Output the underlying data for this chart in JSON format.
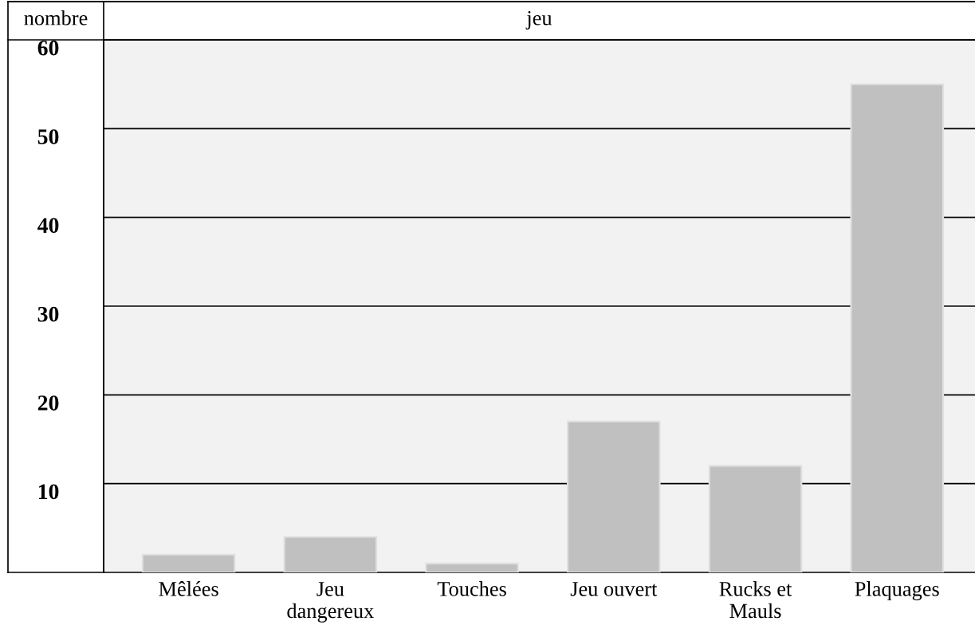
{
  "chart_data": {
    "type": "bar",
    "title": "jeu",
    "ylabel": "nombre",
    "categories": [
      "Mêlées",
      "Jeu\ndangereux",
      "Touches",
      "Jeu ouvert",
      "Rucks et\nMauls",
      "Plaquages"
    ],
    "values": [
      2,
      4,
      1,
      17,
      12,
      55
    ],
    "color": "#c0c0c0",
    "ylim": [
      0,
      60
    ],
    "yticks": [
      10,
      20,
      30,
      40,
      50,
      60
    ],
    "grid": "y",
    "legend": false
  }
}
